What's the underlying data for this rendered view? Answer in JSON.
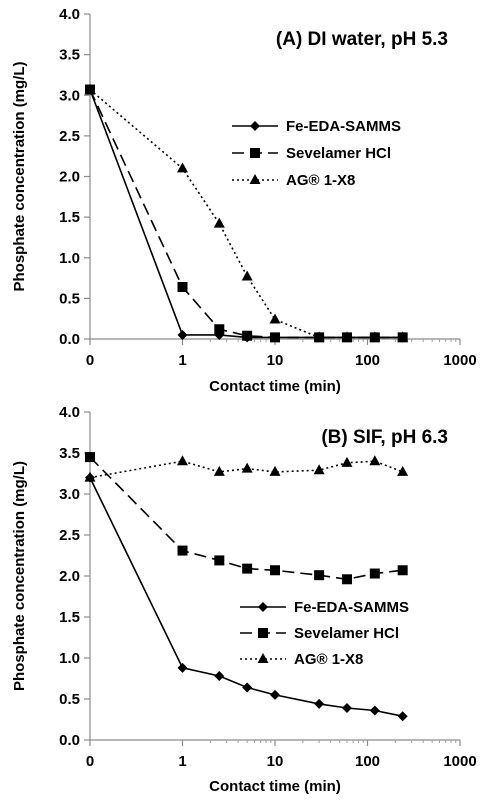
{
  "chart_data": [
    {
      "type": "line",
      "title": "(A) DI water, pH 5.3",
      "xlabel": "Contact time (min)",
      "ylabel": "Phosphate concentration (mg/L)",
      "xscale": "log",
      "xlim": [
        0,
        1000
      ],
      "ylim": [
        0,
        4.0
      ],
      "xticks": [
        "0",
        "1",
        "10",
        "100",
        "1000"
      ],
      "yticks": [
        "0.0",
        "0.5",
        "1.0",
        "1.5",
        "2.0",
        "2.5",
        "3.0",
        "3.5",
        "4.0"
      ],
      "grid": false,
      "legend_position": "right",
      "series": [
        {
          "name": "Fe-EDA-SAMMS",
          "line": "solid",
          "marker": "diamond",
          "x": [
            0,
            1,
            2.5,
            5,
            10,
            30,
            60,
            120,
            240
          ],
          "y": [
            3.07,
            0.05,
            0.05,
            0.02,
            0.02,
            0.02,
            0.02,
            0.02,
            0.02
          ]
        },
        {
          "name": "Sevelamer HCl",
          "line": "dashed",
          "marker": "square",
          "x": [
            0,
            1,
            2.5,
            5,
            10,
            30,
            60,
            120,
            240
          ],
          "y": [
            3.07,
            0.64,
            0.12,
            0.04,
            0.02,
            0.02,
            0.02,
            0.02,
            0.02
          ]
        },
        {
          "name": "AG® 1-X8",
          "line": "dotted",
          "marker": "triangle",
          "x": [
            0,
            1,
            2.5,
            5,
            10,
            30,
            60,
            120,
            240
          ],
          "y": [
            3.07,
            2.1,
            1.42,
            0.77,
            0.24,
            0.02,
            0.02,
            0.02,
            0.02
          ]
        }
      ]
    },
    {
      "type": "line",
      "title": "(B) SIF, pH 6.3",
      "xlabel": "Contact time (min)",
      "ylabel": "Phosphate concentration (mg/L)",
      "xscale": "log",
      "xlim": [
        0,
        1000
      ],
      "ylim": [
        0,
        4.0
      ],
      "xticks": [
        "0",
        "1",
        "10",
        "100",
        "1000"
      ],
      "yticks": [
        "0.0",
        "0.5",
        "1.0",
        "1.5",
        "2.0",
        "2.5",
        "3.0",
        "3.5",
        "4.0"
      ],
      "grid": false,
      "legend_position": "right",
      "series": [
        {
          "name": "Fe-EDA-SAMMS",
          "line": "solid",
          "marker": "diamond",
          "x": [
            0,
            1,
            2.5,
            5,
            10,
            30,
            60,
            120,
            240
          ],
          "y": [
            3.2,
            0.88,
            0.78,
            0.64,
            0.55,
            0.44,
            0.39,
            0.36,
            0.29
          ]
        },
        {
          "name": "Sevelamer HCl",
          "line": "dashed",
          "marker": "square",
          "x": [
            0,
            1,
            2.5,
            5,
            10,
            30,
            60,
            120,
            240
          ],
          "y": [
            3.45,
            2.31,
            2.19,
            2.09,
            2.07,
            2.01,
            1.96,
            2.03,
            2.07
          ]
        },
        {
          "name": "AG® 1-X8",
          "line": "dotted",
          "marker": "triangle",
          "x": [
            0,
            1,
            2.5,
            5,
            10,
            30,
            60,
            120,
            240
          ],
          "y": [
            3.2,
            3.4,
            3.27,
            3.31,
            3.27,
            3.29,
            3.38,
            3.4,
            3.27
          ]
        }
      ]
    }
  ]
}
